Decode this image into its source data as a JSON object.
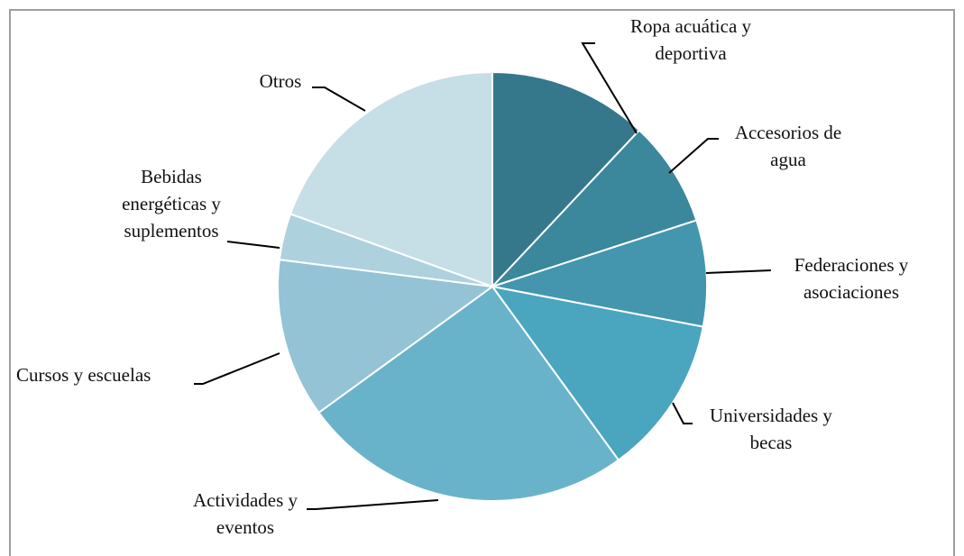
{
  "chart_data": {
    "type": "pie",
    "title": "",
    "categories": [
      "Ropa acuática y deportiva",
      "Accesorios de agua",
      "Federaciones y asociaciones",
      "Universidades y becas",
      "Actividades y eventos",
      "Cursos y escuelas",
      "Bebidas energéticas y suplementos",
      "Otros"
    ],
    "values": [
      12,
      8,
      8,
      12,
      25,
      12,
      3.5,
      19.5
    ],
    "label_lines": [
      [
        "Ropa acuática y",
        "deportiva"
      ],
      [
        "Accesorios de",
        "agua"
      ],
      [
        "Federaciones y",
        "asociaciones"
      ],
      [
        "Universidades y",
        "becas"
      ],
      [
        "Actividades y",
        "eventos"
      ],
      [
        "Cursos y escuelas"
      ],
      [
        "Bebidas",
        "energéticas y",
        "suplementos"
      ],
      [
        "Otros"
      ]
    ],
    "colors": [
      "#35788B",
      "#3B879C",
      "#4396AE",
      "#4AA5BF",
      "#69B3CA",
      "#93C3D5",
      "#AED1DE",
      "#C6DEE6"
    ],
    "start_angle_deg": 0,
    "direction": "clockwise",
    "legend": "none",
    "data_labels": "category names with leader lines"
  }
}
